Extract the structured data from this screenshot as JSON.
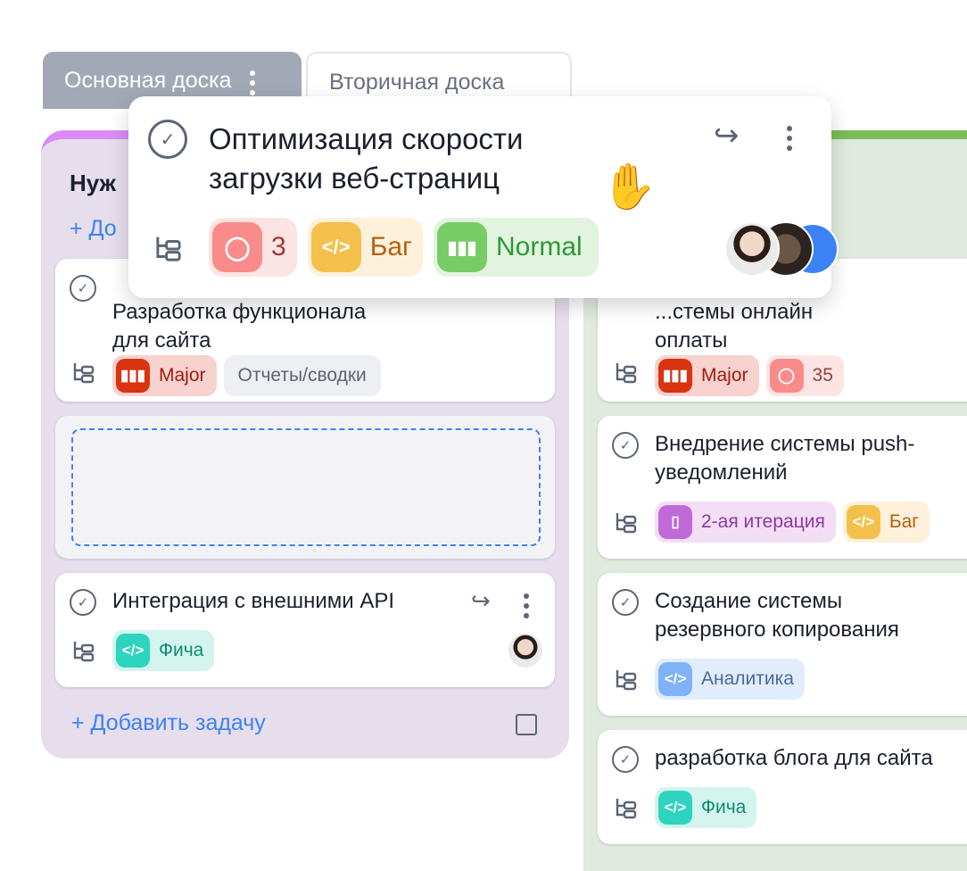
{
  "tabs": [
    {
      "label": "Основная доска"
    },
    {
      "label": "Вторичная доска"
    }
  ],
  "columns": [
    {
      "title": "Нуж",
      "accent": "#d98cf5",
      "add_top": "+ До",
      "add_bottom": "Добавить задачу",
      "cards": [
        {
          "title": "Разработка функционала для сайта",
          "title_visible": "Ра",
          "line2": "функционала для сайта",
          "tags": [
            {
              "icon": "priority-icon",
              "label": "Major"
            },
            {
              "label": "Отчеты/сводки"
            }
          ]
        },
        {
          "title": "Интеграция с внешними API",
          "tags": [
            {
              "icon": "code-icon",
              "label": "Фича"
            }
          ]
        }
      ]
    },
    {
      "accent": "#7bbd58",
      "cards": [
        {
          "line1": "...стемы онлайн",
          "line2": "оплаты",
          "tags": [
            {
              "icon": "priority-icon",
              "label": "Major"
            },
            {
              "icon": "comment-icon",
              "label": "35"
            }
          ]
        },
        {
          "line1": "Внедрение системы push-",
          "line2": "уведомлений",
          "tags": [
            {
              "icon": "bookmark-icon",
              "label": "2-ая итерация"
            },
            {
              "icon": "code-icon",
              "label": "Баг"
            }
          ]
        },
        {
          "line1": "Создание системы",
          "line2": "резервного копирования",
          "tags": [
            {
              "icon": "code-icon",
              "label": "Аналитика"
            }
          ]
        },
        {
          "line1": "разработка блога для сайта",
          "tags": [
            {
              "icon": "code-icon",
              "label": "Фича"
            }
          ]
        }
      ]
    }
  ],
  "popup": {
    "line1": "Оптимизация скорости",
    "line2": "загрузки веб-страниц",
    "tags": [
      {
        "icon": "comment-icon",
        "label": "3"
      },
      {
        "icon": "code-icon",
        "label": "Баг"
      },
      {
        "icon": "priority-icon",
        "label": "Normal"
      }
    ]
  }
}
